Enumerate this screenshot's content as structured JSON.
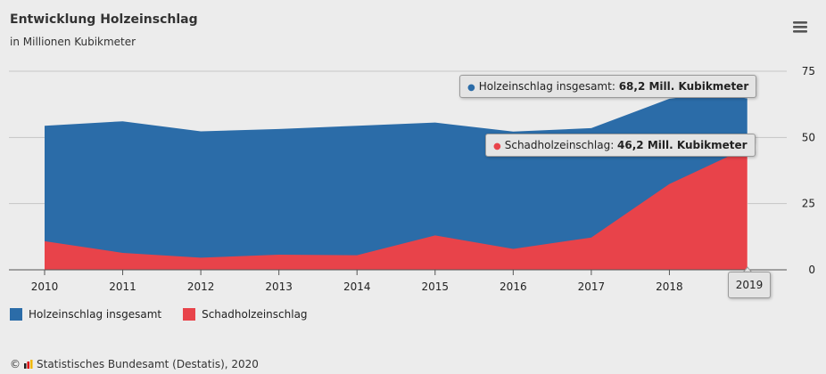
{
  "title": "Entwicklung Holzeinschlag",
  "subtitle": "in Millionen Kubikmeter",
  "menu_icon": "hamburger-menu-icon",
  "colors": {
    "total": "#2b6ca8",
    "damage": "#e8434a",
    "background": "#ececec"
  },
  "source": {
    "symbol": "©",
    "text": "Statistisches Bundesamt (Destatis), 2020"
  },
  "tooltips": {
    "total": {
      "label": "Holzeinschlag insgesamt: ",
      "value": "68,2 Mill. Kubikmeter"
    },
    "damage": {
      "label": "Schadholzeinschlag: ",
      "value": "46,2 Mill. Kubikmeter"
    },
    "year": "2019"
  },
  "chart_data": {
    "type": "area",
    "x": [
      "2010",
      "2011",
      "2012",
      "2013",
      "2014",
      "2015",
      "2016",
      "2017",
      "2018",
      "2019"
    ],
    "series": [
      {
        "name": "Holzeinschlag insgesamt",
        "color": "#2b6ca8",
        "values": [
          54.4,
          56.1,
          52.3,
          53.2,
          54.4,
          55.6,
          52.2,
          53.5,
          64.6,
          68.2
        ]
      },
      {
        "name": "Schadholzeinschlag",
        "color": "#e8434a",
        "values": [
          10.8,
          6.4,
          4.6,
          5.7,
          5.5,
          13.0,
          7.9,
          12.2,
          32.4,
          46.2
        ]
      }
    ],
    "ylim": [
      0,
      75
    ],
    "yticks": [
      "0",
      "25",
      "50",
      "75"
    ],
    "grid": true,
    "legend": "bottom-left"
  }
}
